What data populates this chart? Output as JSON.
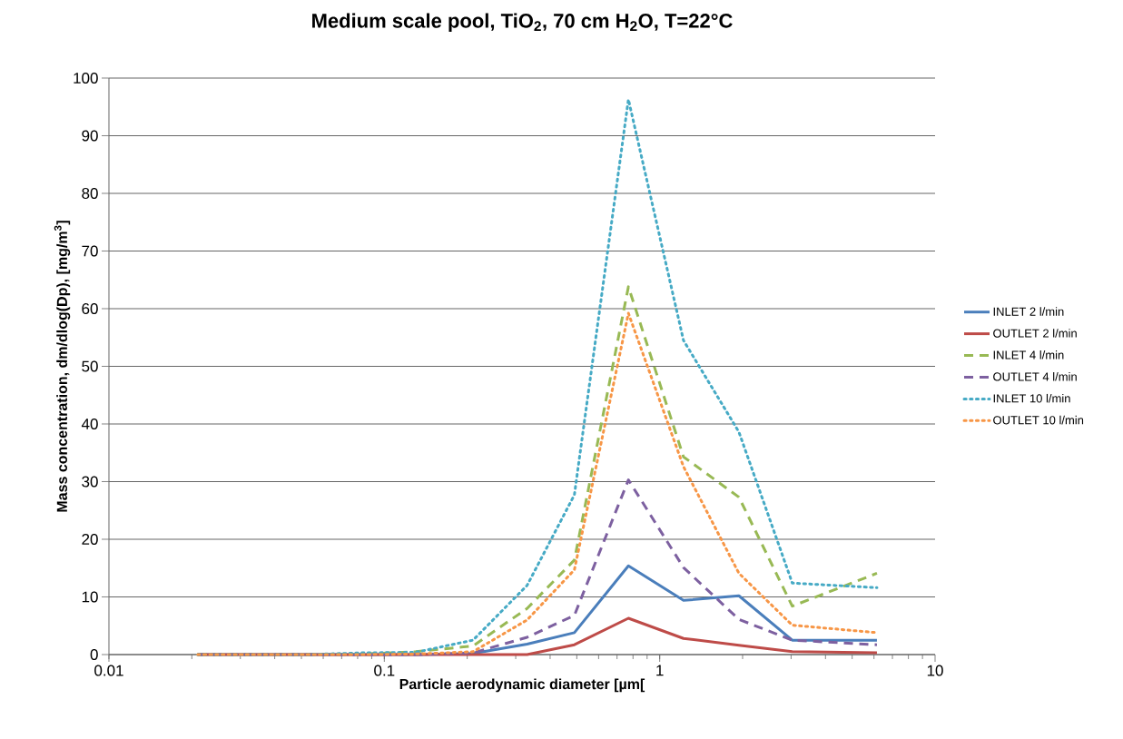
{
  "chart_data": {
    "type": "line",
    "title": "Medium scale pool, TiO$_{2}$, 70 cm H$_{2}$O, T=22°C",
    "xlabel": "Particle aerodynamic diameter [µm[",
    "ylabel": "Mass concentration, dm/dlog(Dp), [mg/m$^{3}$]",
    "x": [
      0.021,
      0.033,
      0.052,
      0.083,
      0.13,
      0.21,
      0.33,
      0.49,
      0.77,
      1.22,
      1.94,
      3.03,
      6.15
    ],
    "series": [
      {
        "name": "INLET 2 l/min",
        "color": "#4a7ebb",
        "line_style": "solid",
        "values": [
          0,
          0,
          0,
          0,
          0,
          0.2,
          1.8,
          3.8,
          15.4,
          9.4,
          10.2,
          2.5,
          2.5
        ]
      },
      {
        "name": "OUTLET 2 l/min",
        "color": "#be4b48",
        "line_style": "solid",
        "values": [
          0,
          0,
          0,
          0,
          0,
          0,
          0,
          1.7,
          6.3,
          2.8,
          1.6,
          0.5,
          0.3
        ]
      },
      {
        "name": "INLET 4 l/min",
        "color": "#98b954",
        "line_style": "dashed",
        "values": [
          0,
          0,
          0,
          0.1,
          0.5,
          1.5,
          8,
          16.4,
          63.8,
          34.3,
          27.3,
          8.4,
          14.1
        ]
      },
      {
        "name": "OUTLET 4 l/min",
        "color": "#7d60a0",
        "line_style": "dashed",
        "values": [
          0,
          0,
          0,
          0,
          0,
          0.3,
          3,
          6.8,
          30.3,
          15.1,
          6.1,
          2.5,
          1.7
        ]
      },
      {
        "name": "INLET 10 l/min",
        "color": "#46aac5",
        "line_style": "dotted",
        "values": [
          0,
          0,
          0,
          0.3,
          0.4,
          2.5,
          12,
          27.7,
          96.3,
          54.5,
          38.6,
          12.4,
          11.6
        ]
      },
      {
        "name": "OUTLET 10 l/min",
        "color": "#f79646",
        "line_style": "dotted",
        "values": [
          0,
          0,
          0,
          0,
          0.1,
          0.5,
          6,
          14.7,
          59.2,
          32.6,
          14.1,
          5.1,
          3.8
        ]
      }
    ],
    "log": "x",
    "xlim": [
      0.01,
      10
    ],
    "xticks": [
      0.01,
      0.1,
      1,
      10
    ],
    "ylim": [
      0,
      100
    ],
    "yticks": [
      0,
      10,
      20,
      30,
      40,
      50,
      60,
      70,
      80,
      90,
      100
    ],
    "grid": "y",
    "legend": "right",
    "marker": "none"
  }
}
